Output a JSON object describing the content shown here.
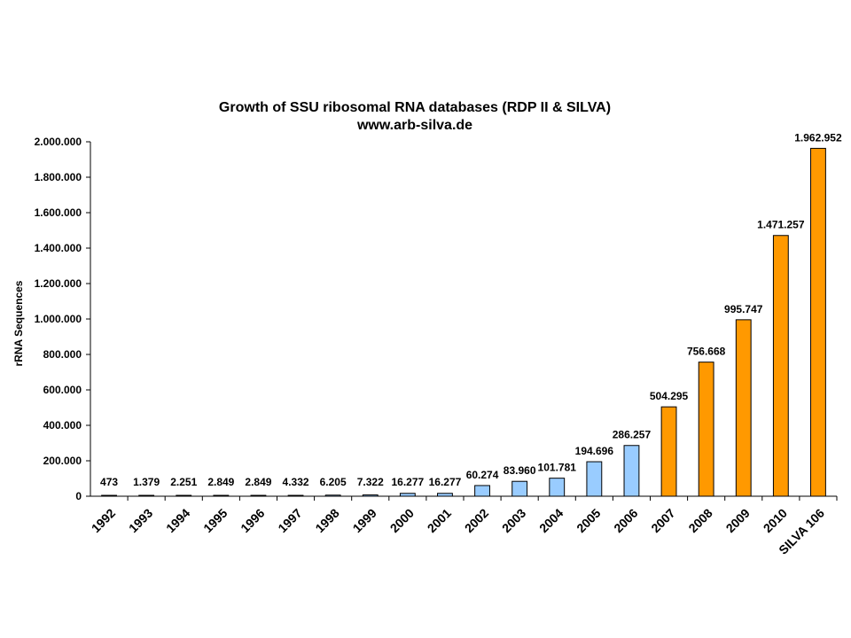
{
  "chart_data": {
    "type": "bar",
    "title": "Growth of SSU ribosomal RNA databases (RDP II & SILVA)",
    "subtitle": "www.arb-silva.de",
    "ylabel": "rRNA Sequences",
    "xlabel": "",
    "ylim": [
      0,
      2000000
    ],
    "yticks": [
      0,
      200000,
      400000,
      600000,
      800000,
      1000000,
      1200000,
      1400000,
      1600000,
      1800000,
      2000000
    ],
    "ytick_labels": [
      "0",
      "200.000",
      "400.000",
      "600.000",
      "800.000",
      "1.000.000",
      "1.200.000",
      "1.400.000",
      "1.600.000",
      "1.800.000",
      "2.000.000"
    ],
    "grid": false,
    "legend": "none",
    "categories": [
      "1992",
      "1993",
      "1994",
      "1995",
      "1996",
      "1997",
      "1998",
      "1999",
      "2000",
      "2001",
      "2002",
      "2003",
      "2004",
      "2005",
      "2006",
      "2007",
      "2008",
      "2009",
      "2010",
      "SILVA 106"
    ],
    "values": [
      473,
      1379,
      2251,
      2849,
      2849,
      4332,
      6205,
      7322,
      16277,
      16277,
      60274,
      83960,
      101781,
      194696,
      286257,
      504295,
      756668,
      995747,
      1471257,
      1962952
    ],
    "data_labels": [
      "473",
      "1.379",
      "2.251",
      "2.849",
      "2.849",
      "4.332",
      "6.205",
      "7.322",
      "16.277",
      "16.277",
      "60.274",
      "83.960",
      "101.781",
      "194.696",
      "286.257",
      "504.295",
      "756.668",
      "995.747",
      "1.471.257",
      "1.962.952"
    ],
    "bar_colors": [
      "#99ccff",
      "#99ccff",
      "#99ccff",
      "#99ccff",
      "#99ccff",
      "#99ccff",
      "#99ccff",
      "#99ccff",
      "#99ccff",
      "#99ccff",
      "#99ccff",
      "#99ccff",
      "#99ccff",
      "#99ccff",
      "#99ccff",
      "#ff9900",
      "#ff9900",
      "#ff9900",
      "#ff9900",
      "#ff9900"
    ]
  }
}
